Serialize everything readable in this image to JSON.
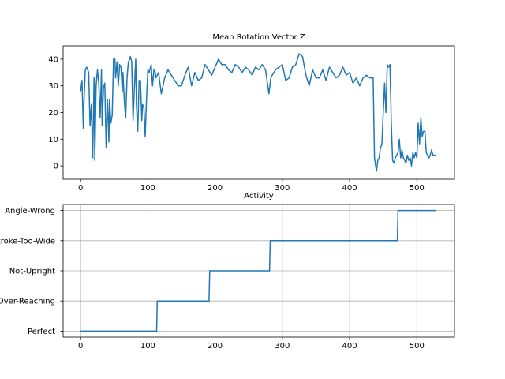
{
  "chart_data": [
    {
      "type": "line",
      "title": "Mean Rotation Vector Z",
      "xlabel": "",
      "ylabel": "",
      "xlim": [
        -26,
        556
      ],
      "ylim": [
        -5,
        45
      ],
      "xticks": [
        0,
        100,
        200,
        300,
        400,
        500
      ],
      "yticks": [
        0,
        10,
        20,
        30,
        40
      ],
      "grid": false,
      "line_color": "#1f77b4",
      "series": [
        {
          "name": "",
          "x": [
            0,
            2,
            4,
            5,
            7,
            9,
            12,
            14,
            16,
            18,
            20,
            21,
            23,
            25,
            27,
            29,
            31,
            32,
            34,
            36,
            38,
            40,
            42,
            43,
            45,
            47,
            49,
            51,
            52,
            54,
            56,
            58,
            60,
            62,
            63,
            65,
            67,
            69,
            71,
            73,
            74,
            76,
            78,
            80,
            82,
            83,
            85,
            87,
            89,
            91,
            92,
            94,
            96,
            98,
            100,
            102,
            103,
            105,
            107,
            109,
            111,
            112,
            114,
            116,
            120,
            125,
            130,
            135,
            140,
            145,
            150,
            155,
            160,
            165,
            170,
            175,
            180,
            185,
            190,
            195,
            200,
            205,
            210,
            215,
            220,
            225,
            230,
            235,
            240,
            245,
            250,
            255,
            260,
            265,
            270,
            275,
            280,
            283,
            285,
            290,
            295,
            300,
            305,
            310,
            315,
            320,
            325,
            330,
            335,
            340,
            345,
            350,
            355,
            360,
            365,
            370,
            375,
            380,
            385,
            390,
            395,
            400,
            405,
            410,
            415,
            420,
            425,
            430,
            435,
            437,
            440,
            442,
            444,
            446,
            448,
            450,
            452,
            454,
            456,
            458,
            460,
            462,
            464,
            466,
            468,
            470,
            472,
            474,
            476,
            478,
            480,
            482,
            484,
            486,
            488,
            490,
            492,
            494,
            496,
            498,
            500,
            502,
            504,
            506,
            508,
            510,
            512,
            514,
            516,
            518,
            520,
            522,
            524,
            526,
            528
          ],
          "y": [
            28,
            32,
            14,
            24,
            36,
            37,
            35,
            15,
            23,
            3,
            33,
            2,
            30,
            36,
            31,
            18,
            36,
            15,
            29,
            31,
            7,
            25,
            9,
            25,
            16,
            19,
            40,
            40,
            33,
            39,
            30,
            38,
            37,
            28,
            35,
            24,
            18,
            33,
            39,
            40,
            41,
            39,
            17,
            29,
            40,
            23,
            13,
            32,
            32,
            17,
            23,
            22,
            11,
            25,
            36,
            35,
            36,
            38,
            30,
            36,
            35,
            33,
            34,
            35,
            27,
            33,
            36,
            34,
            32,
            30,
            30,
            34,
            37,
            30,
            35,
            32,
            33,
            38,
            36,
            34,
            37,
            40,
            38,
            38,
            36,
            35,
            38,
            37,
            35,
            37,
            36,
            34,
            37,
            36,
            38,
            36,
            27,
            33,
            34,
            36,
            37,
            38,
            32,
            33,
            37,
            38,
            42,
            41,
            34,
            30,
            36,
            33,
            33,
            36,
            32,
            37,
            35,
            33,
            34,
            37,
            34,
            35,
            31,
            33,
            30,
            33,
            34,
            33,
            33,
            3,
            -2,
            2,
            3,
            7,
            8,
            20,
            31,
            20,
            38,
            37,
            38,
            16,
            2,
            1,
            3,
            4,
            5,
            10,
            3,
            6,
            3,
            2,
            1,
            4,
            2,
            3,
            0,
            5,
            3,
            5,
            3,
            16,
            8,
            18,
            11,
            13,
            13,
            5,
            4,
            3,
            4,
            6,
            4,
            4,
            4
          ]
        }
      ]
    },
    {
      "type": "line",
      "title": "Activity",
      "xlabel": "",
      "ylabel": "",
      "xlim": [
        -26,
        556
      ],
      "xticks": [
        0,
        100,
        200,
        300,
        400,
        500
      ],
      "categories": [
        "Perfect",
        "Over-Reaching",
        "Not-Upright",
        "Stroke-Too-Wide",
        "Angle-Wrong"
      ],
      "grid": true,
      "line_color": "#1f77b4",
      "series": [
        {
          "name": "",
          "x": [
            0,
            113,
            114,
            191,
            192,
            281,
            282,
            471,
            472,
            529
          ],
          "y": [
            0,
            0,
            1,
            1,
            2,
            2,
            3,
            3,
            4,
            4
          ]
        }
      ]
    }
  ]
}
